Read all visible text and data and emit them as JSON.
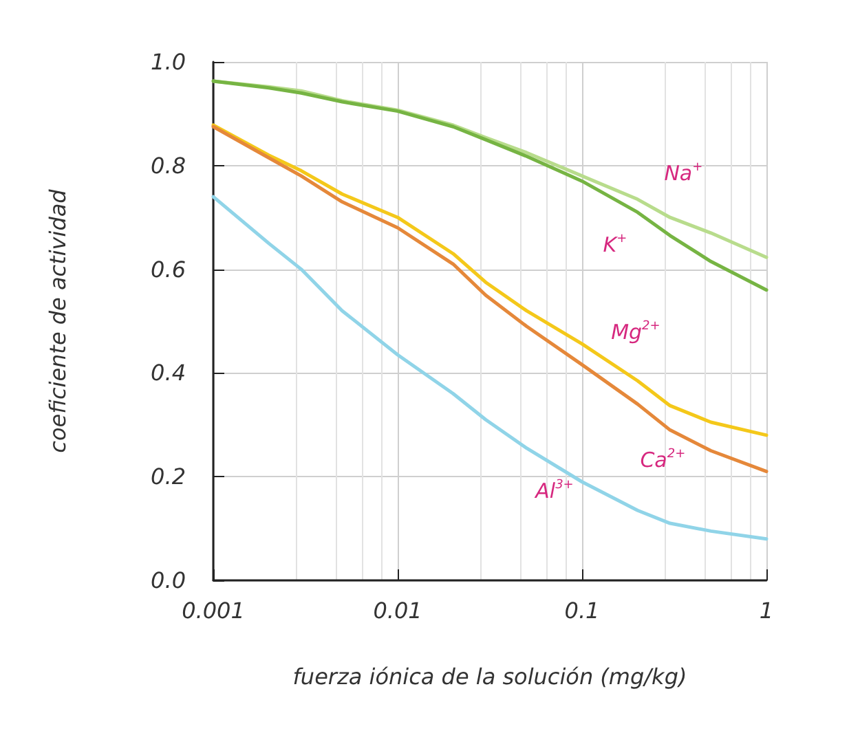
{
  "chart_data": {
    "type": "line",
    "xlabel": "fuerza iónica de la solución (mg/kg)",
    "ylabel": "coeficiente de actividad",
    "x": [
      0.001,
      0.002,
      0.003,
      0.005,
      0.01,
      0.02,
      0.03,
      0.05,
      0.1,
      0.2,
      0.3,
      0.5,
      1
    ],
    "series": [
      {
        "name": "Na$^{+}$",
        "color": "#b8dc8c",
        "values": [
          0.963,
          0.952,
          0.944,
          0.925,
          0.907,
          0.878,
          0.854,
          0.825,
          0.78,
          0.735,
          0.7,
          0.67,
          0.623
        ]
      },
      {
        "name": "K$^{+}$",
        "color": "#76b443",
        "values": [
          0.963,
          0.95,
          0.94,
          0.923,
          0.905,
          0.875,
          0.85,
          0.818,
          0.77,
          0.71,
          0.665,
          0.615,
          0.56
        ]
      },
      {
        "name": "Mg$^{2+}$",
        "color": "#f4c81a",
        "values": [
          0.878,
          0.82,
          0.79,
          0.745,
          0.7,
          0.63,
          0.575,
          0.52,
          0.456,
          0.385,
          0.337,
          0.305,
          0.28
        ]
      },
      {
        "name": "Ca$^{2+}$",
        "color": "#e5883a",
        "values": [
          0.875,
          0.815,
          0.78,
          0.73,
          0.68,
          0.61,
          0.55,
          0.49,
          0.416,
          0.34,
          0.29,
          0.25,
          0.21
        ]
      },
      {
        "name": "Al$^{3+}$",
        "color": "#90d4e8",
        "values": [
          0.74,
          0.65,
          0.6,
          0.52,
          0.435,
          0.36,
          0.31,
          0.255,
          0.19,
          0.135,
          0.11,
          0.095,
          0.08
        ]
      }
    ],
    "log": "x",
    "xlim": [
      0.001,
      1
    ],
    "xticks": [
      0.001,
      0.01,
      0.1,
      1
    ],
    "ylim": [
      0,
      1
    ],
    "yticks": [
      {
        "value": 0,
        "label": "0.0"
      },
      0.2,
      0.4,
      0.6,
      0.8,
      {
        "value": 1,
        "label": "1.0"
      }
    ],
    "grid": true,
    "legend": false,
    "marker": "none",
    "line_style": "solid"
  }
}
